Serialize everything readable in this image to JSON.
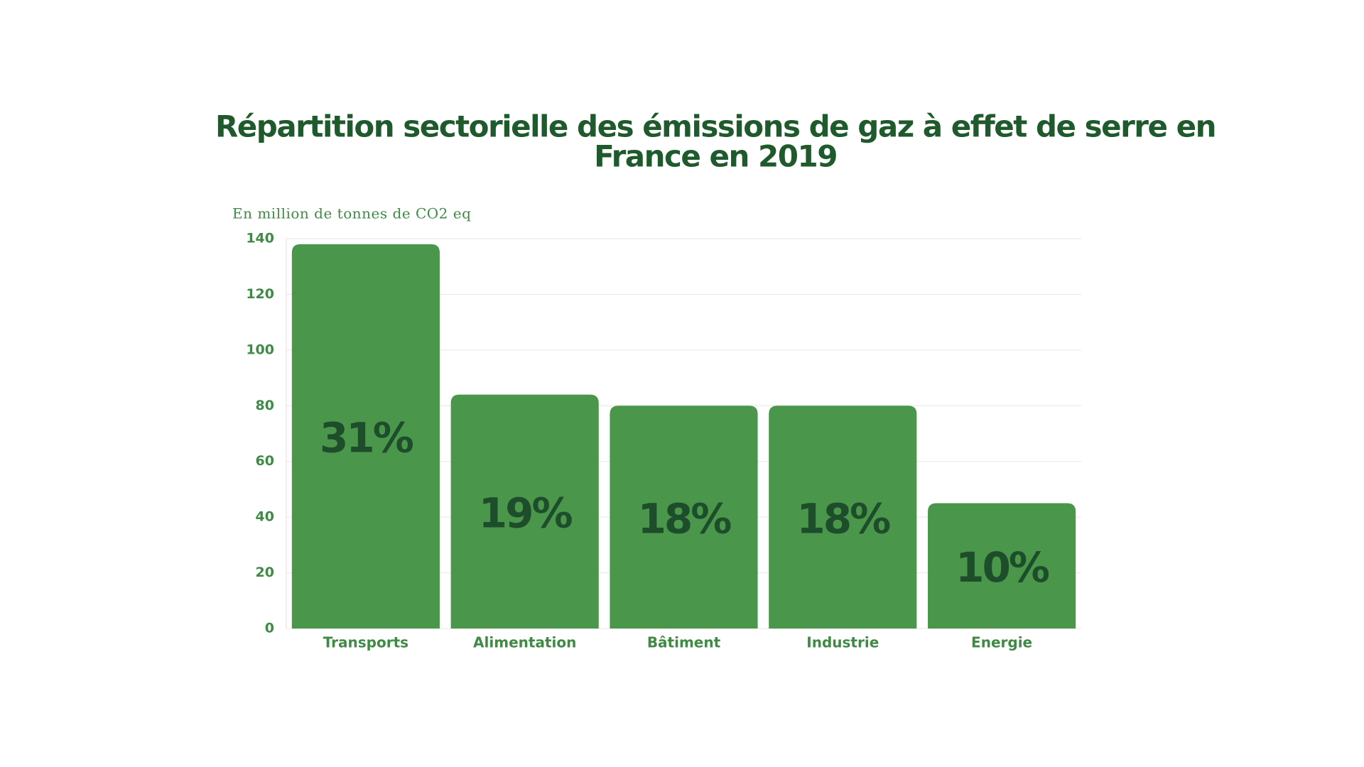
{
  "chart_data": {
    "type": "bar",
    "title": [
      "Répartition sectorielle des émissions de gaz à effet de serre en",
      "France en 2019"
    ],
    "y_label": "En million de tonnes de CO2 eq",
    "categories": [
      "Transports",
      "Alimentation",
      "Bâtiment",
      "Industrie",
      "Energie"
    ],
    "values": [
      138,
      84,
      80,
      80,
      45
    ],
    "annotations": [
      "31%",
      "19%",
      "18%",
      "18%",
      "10%"
    ],
    "color": "#4a974b",
    "ylim": [
      0,
      140
    ],
    "yticks": [
      0,
      20,
      40,
      60,
      80,
      100,
      120,
      140
    ],
    "grid": true
  }
}
